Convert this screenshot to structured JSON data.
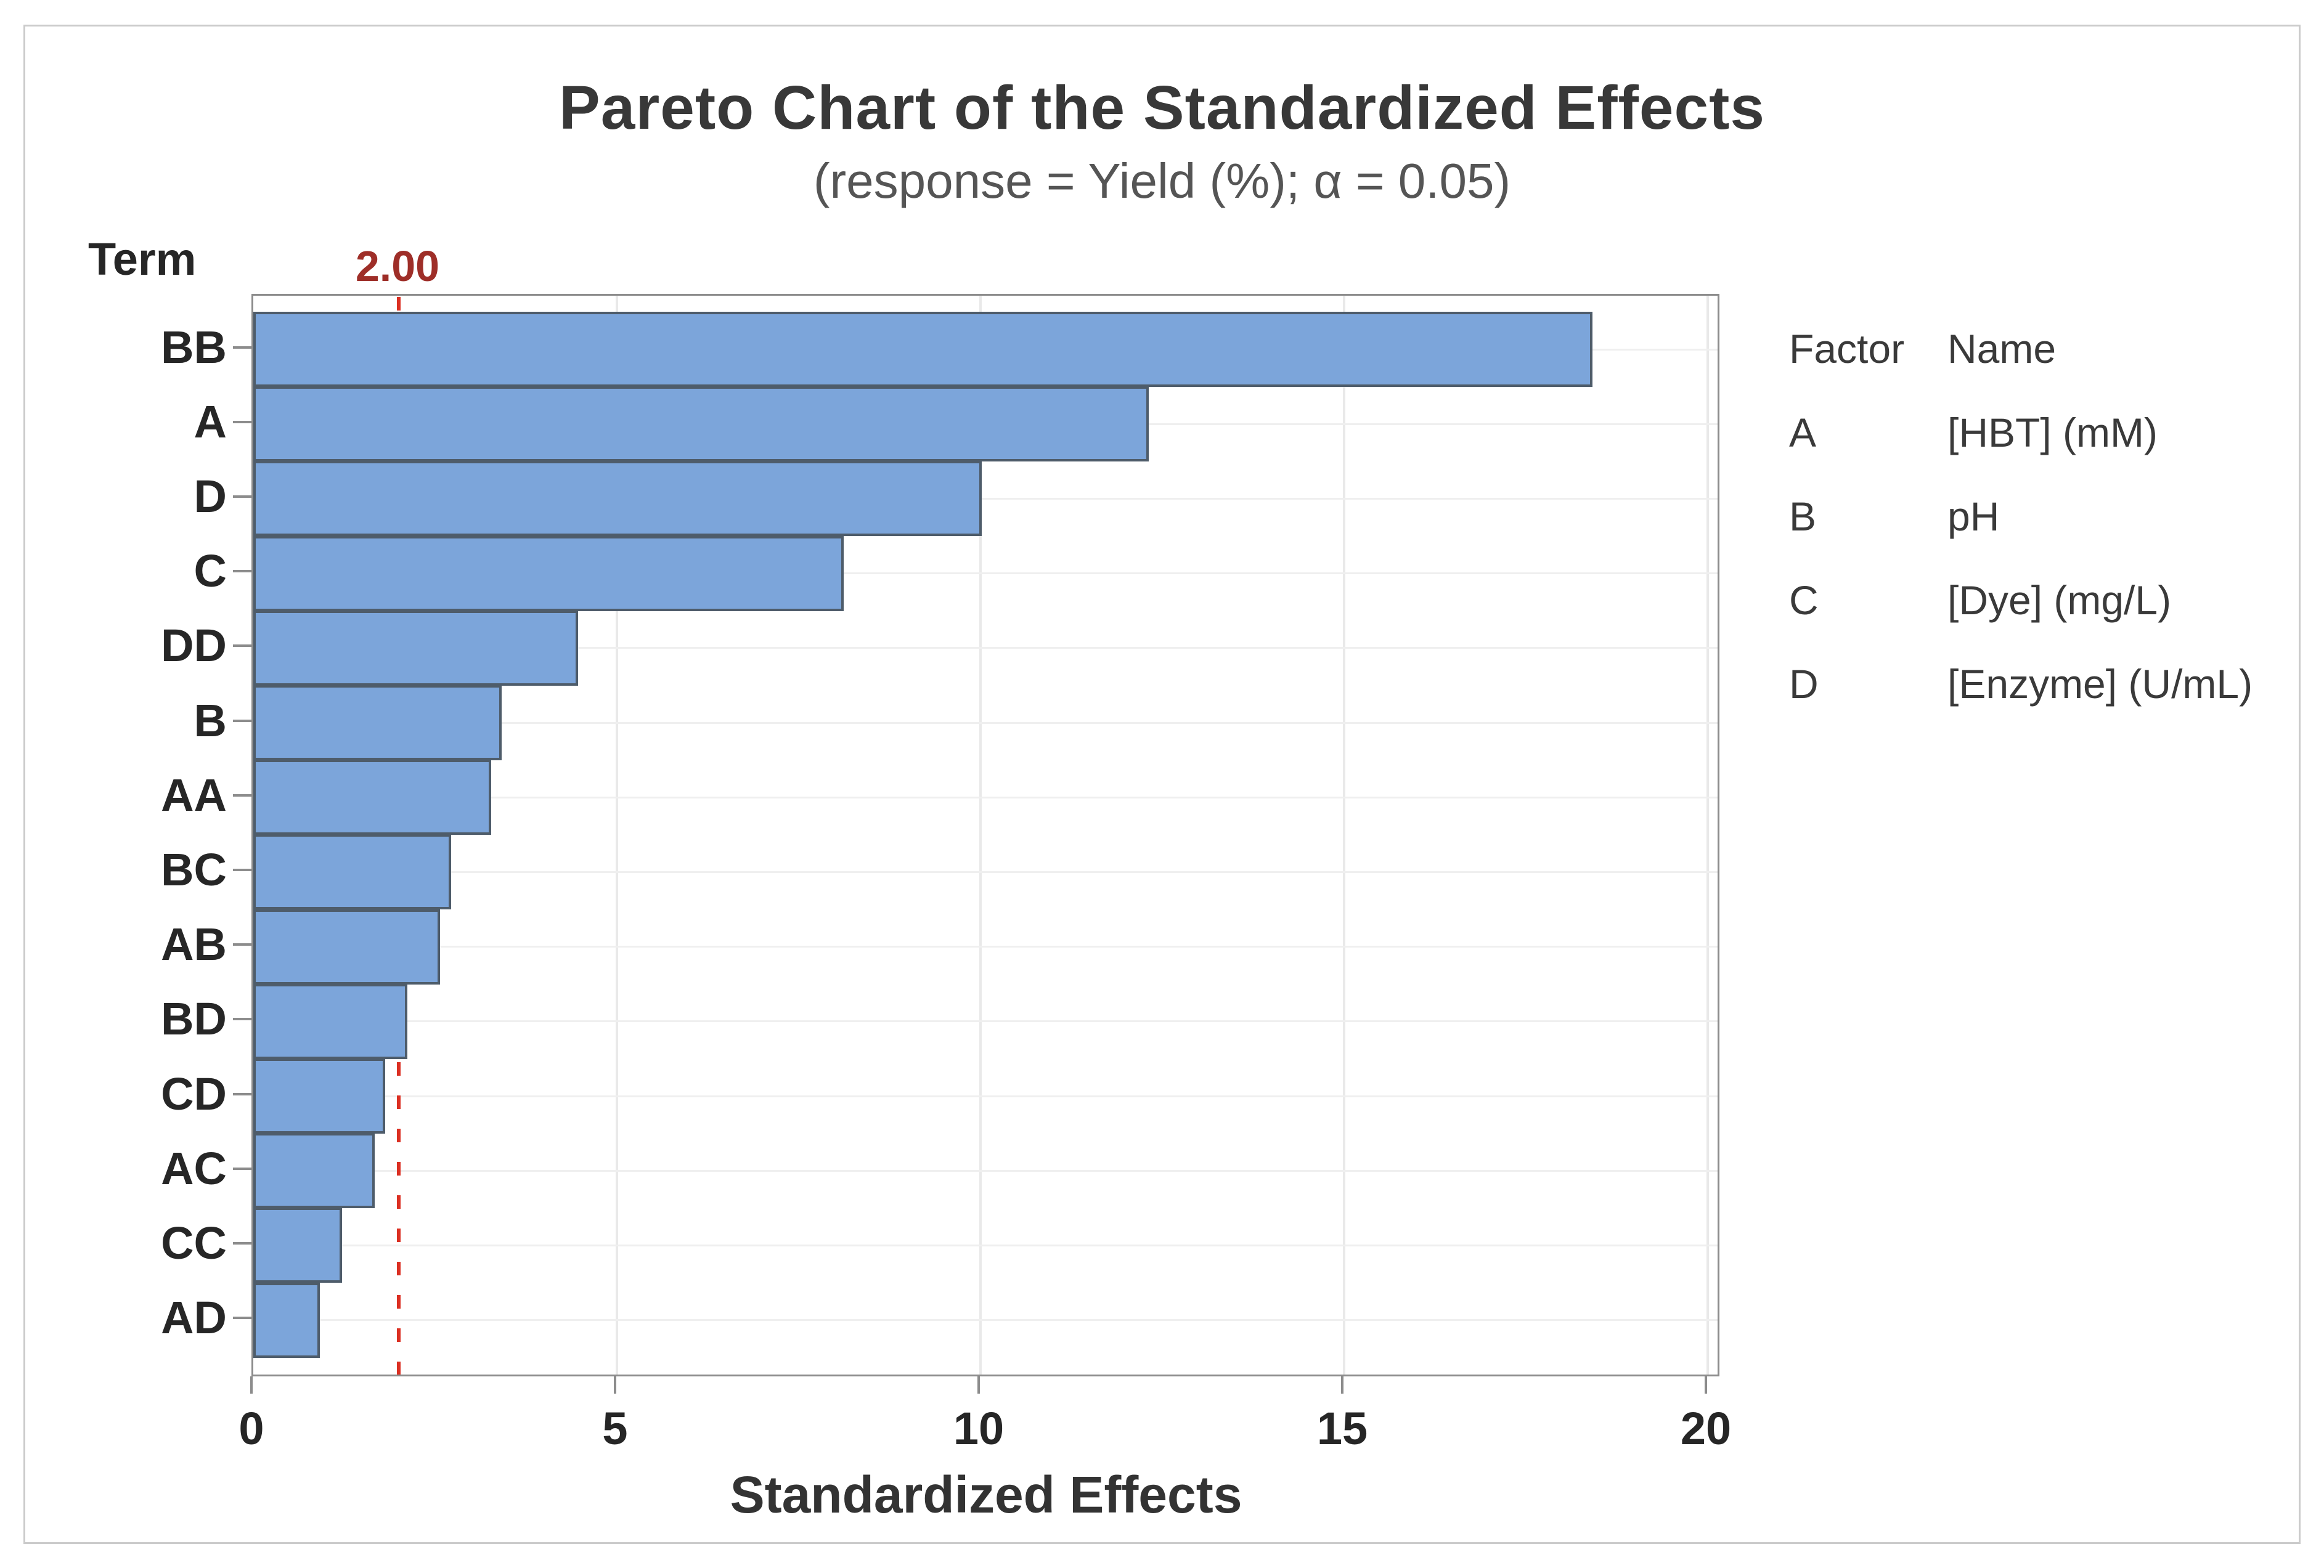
{
  "chart_data": {
    "type": "bar",
    "orientation": "horizontal",
    "title": "Pareto Chart of the Standardized Effects",
    "subtitle": "(response = Yield (%); α = 0.05)",
    "xlabel": "Standardized Effects",
    "ylabel": "Term",
    "categories": [
      "BB",
      "A",
      "D",
      "C",
      "DD",
      "B",
      "AA",
      "BC",
      "AB",
      "BD",
      "CD",
      "AC",
      "CC",
      "AD"
    ],
    "values": [
      18.4,
      12.3,
      10.0,
      8.1,
      4.45,
      3.4,
      3.25,
      2.7,
      2.55,
      2.1,
      1.8,
      1.65,
      1.2,
      0.9
    ],
    "xlim": [
      0,
      20
    ],
    "x_ticks": [
      0,
      5,
      10,
      15,
      20
    ],
    "grid": "vertical light gridlines at x ticks, horizontal light gridlines at category centers",
    "legend_position": "right",
    "reference_line": {
      "value": 2.0,
      "label": "2.00"
    },
    "colors": {
      "bar_fill": "#7ca5da",
      "bar_border": "#4e5c6a",
      "axis": "#8c8c8c",
      "reference_line": "#db2f22",
      "reference_label": "#9e2e28",
      "title_text": "#383838",
      "subtitle_text": "#555555",
      "tick_text": "#262626"
    }
  },
  "legend": {
    "header": {
      "factor": "Factor",
      "name": "Name"
    },
    "rows": [
      {
        "factor": "A",
        "name": "[HBT] (mM)"
      },
      {
        "factor": "B",
        "name": "pH"
      },
      {
        "factor": "C",
        "name": "[Dye] (mg/L)"
      },
      {
        "factor": "D",
        "name": "[Enzyme] (U/mL)"
      }
    ]
  }
}
